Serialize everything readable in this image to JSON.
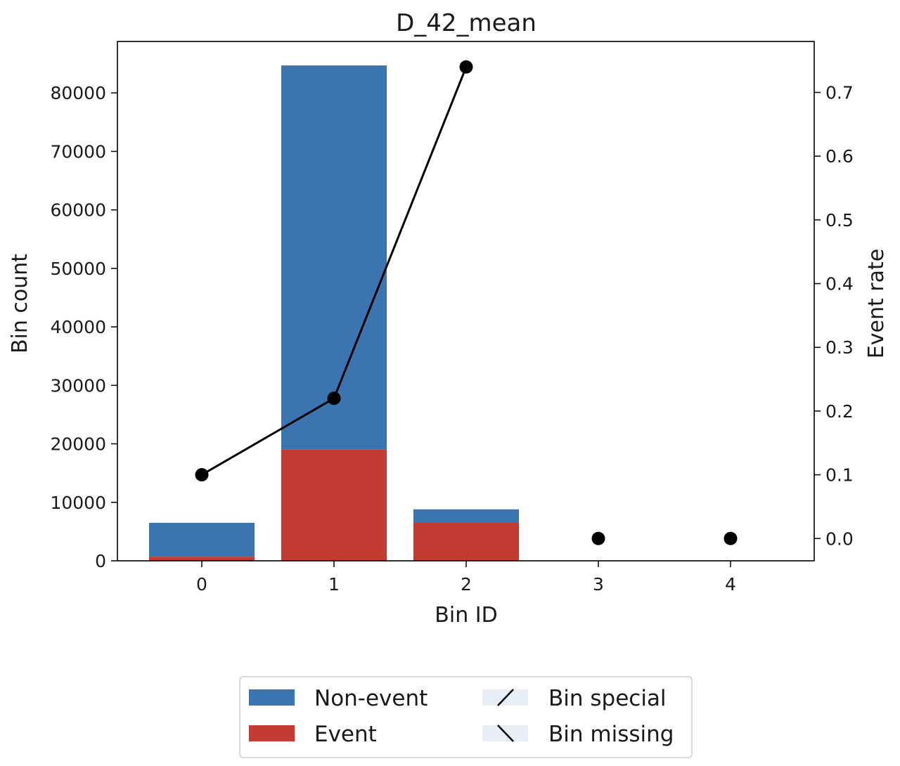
{
  "chart_data": {
    "type": "bar",
    "title": "D_42_mean",
    "xlabel": "Bin ID",
    "ylabel": "Bin count",
    "y2label": "Event rate",
    "categories": [
      "0",
      "1",
      "2",
      "3",
      "4"
    ],
    "ylim": [
      0,
      88800
    ],
    "y2lim": [
      -0.035,
      0.78
    ],
    "yticks": [
      0,
      10000,
      20000,
      30000,
      40000,
      50000,
      60000,
      70000,
      80000
    ],
    "y2ticks": [
      0.0,
      0.1,
      0.2,
      0.3,
      0.4,
      0.5,
      0.6,
      0.7
    ],
    "series": [
      {
        "name": "Non-event",
        "type": "bar",
        "color": "#3a75b0",
        "values": [
          5800,
          65700,
          2200,
          0,
          0
        ]
      },
      {
        "name": "Event",
        "type": "bar",
        "color": "#c33b32",
        "values": [
          700,
          19000,
          6600,
          0,
          0
        ]
      },
      {
        "name": "Event rate",
        "type": "line",
        "color": "#000000",
        "values": [
          0.1,
          0.22,
          0.74,
          0.0,
          0.0
        ],
        "line_points": 3
      }
    ],
    "legend": {
      "position": "bottom-center",
      "items": [
        {
          "label": "Non-event",
          "kind": "solid",
          "color": "#3a75b0"
        },
        {
          "label": "Event",
          "kind": "solid",
          "color": "#c33b32"
        },
        {
          "label": "Bin special",
          "kind": "hatch-forward",
          "color": "#e8eef6"
        },
        {
          "label": "Bin missing",
          "kind": "hatch-back",
          "color": "#e8eef6"
        }
      ]
    },
    "grid": false
  }
}
